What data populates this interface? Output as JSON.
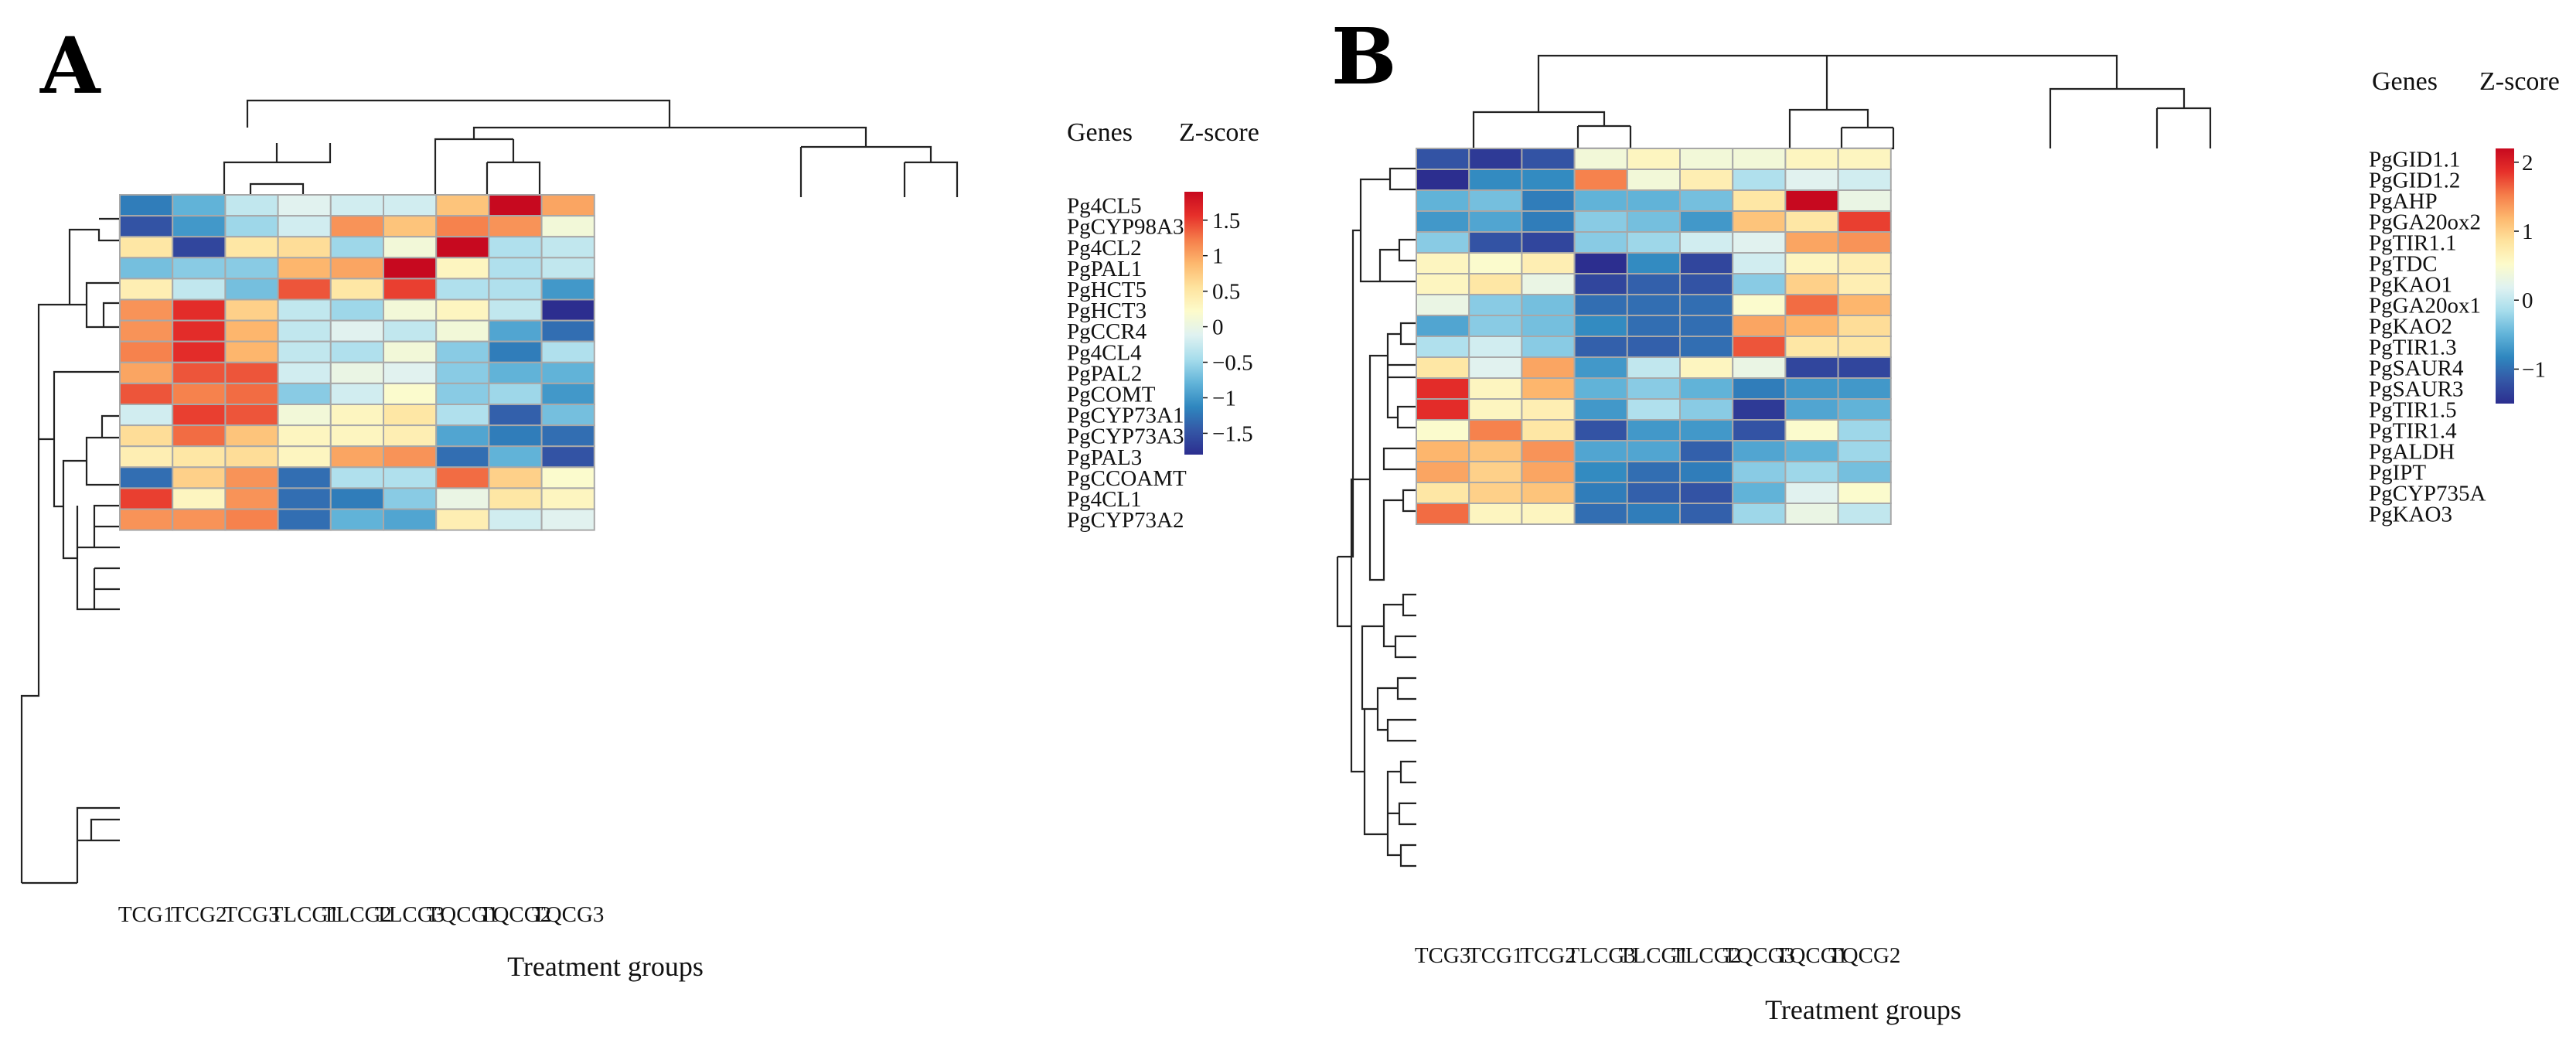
{
  "colors": {
    "scale": [
      "#2c2e8f",
      "#3457a6",
      "#2f87bf",
      "#62b4d9",
      "#a7ddec",
      "#dff2f1",
      "#fdfbcb",
      "#fee39e",
      "#fdb86e",
      "#f57d4a",
      "#e6302a",
      "#c7091f"
    ]
  },
  "chart_data": [
    {
      "type": "heatmap",
      "panel_label": "A",
      "xlabel": "Treatment groups",
      "row_header": "Genes",
      "colorbar_title": "Z-score",
      "colorbar_range": [
        -1.8,
        1.9
      ],
      "colorbar_ticks": [
        {
          "value": 1.5,
          "label": "1.5"
        },
        {
          "value": 1,
          "label": "1"
        },
        {
          "value": 0.5,
          "label": "0.5"
        },
        {
          "value": 0,
          "label": "0"
        },
        {
          "value": -0.5,
          "label": "−0.5"
        },
        {
          "value": -1,
          "label": "−1"
        },
        {
          "value": -1.5,
          "label": "−1.5"
        }
      ],
      "columns": [
        "TCG1",
        "TCG2",
        "TCG3",
        "TLCG1",
        "TLCG2",
        "TLCG3",
        "TQCG1",
        "TQCG2",
        "TQCG3"
      ],
      "rows": [
        "Pg4CL5",
        "PgCYP98A3",
        "Pg4CL2",
        "PgPAL1",
        "PgHCT5",
        "PgHCT3",
        "PgCCR4",
        "Pg4CL4",
        "PgPAL2",
        "PgCOMT",
        "PgCYP73A1",
        "PgCYP73A3",
        "PgPAL3",
        "PgCCOAMT",
        "Pg4CL1",
        "PgCYP73A2"
      ],
      "values": [
        [
          -1.2,
          -0.8,
          -0.3,
          -0.1,
          -0.2,
          -0.2,
          0.8,
          1.9,
          1.0
        ],
        [
          -1.5,
          -1.0,
          -0.5,
          -0.2,
          1.1,
          0.8,
          1.2,
          1.1,
          0.1
        ],
        [
          0.5,
          -1.6,
          0.5,
          0.6,
          -0.5,
          0.1,
          1.9,
          -0.4,
          -0.3
        ],
        [
          -0.7,
          -0.6,
          -0.6,
          0.9,
          1.0,
          1.9,
          0.3,
          -0.4,
          -0.3
        ],
        [
          0.4,
          -0.3,
          -0.7,
          1.4,
          0.5,
          1.5,
          -0.4,
          -0.4,
          -1.0
        ],
        [
          1.1,
          1.6,
          0.7,
          -0.3,
          -0.5,
          0.1,
          0.3,
          -0.3,
          -1.8
        ],
        [
          1.1,
          1.6,
          0.9,
          -0.3,
          -0.1,
          -0.3,
          0.1,
          -0.9,
          -1.3
        ],
        [
          1.2,
          1.6,
          0.9,
          -0.3,
          -0.4,
          0.1,
          -0.6,
          -1.2,
          -0.4
        ],
        [
          1.0,
          1.4,
          1.4,
          -0.2,
          0.0,
          -0.1,
          -0.6,
          -0.8,
          -0.8
        ],
        [
          1.4,
          1.2,
          1.3,
          -0.6,
          -0.2,
          0.2,
          -0.6,
          -0.5,
          -1.0
        ],
        [
          -0.2,
          1.5,
          1.4,
          0.1,
          0.3,
          0.5,
          -0.4,
          -1.4,
          -0.7
        ],
        [
          0.6,
          1.3,
          0.8,
          0.3,
          0.3,
          0.4,
          -0.9,
          -1.2,
          -1.3
        ],
        [
          0.4,
          0.5,
          0.6,
          0.3,
          1.0,
          1.1,
          -1.3,
          -0.8,
          -1.5
        ],
        [
          -1.3,
          0.7,
          1.1,
          -1.3,
          -0.4,
          -0.4,
          1.3,
          0.7,
          0.2
        ],
        [
          1.5,
          0.3,
          1.1,
          -1.3,
          -1.2,
          -0.6,
          0.0,
          0.5,
          0.3
        ],
        [
          1.1,
          1.1,
          1.2,
          -1.3,
          -0.8,
          -0.9,
          0.4,
          -0.2,
          -0.1
        ]
      ]
    },
    {
      "type": "heatmap",
      "panel_label": "B",
      "xlabel": "Treatment groups",
      "row_header": "Genes",
      "colorbar_title": "Z-score",
      "colorbar_range": [
        -1.5,
        2.2
      ],
      "colorbar_ticks": [
        {
          "value": 2,
          "label": "2"
        },
        {
          "value": 1,
          "label": "1"
        },
        {
          "value": 0,
          "label": "0"
        },
        {
          "value": -1,
          "label": "−1"
        }
      ],
      "columns": [
        "TCG3",
        "TCG1",
        "TCG2",
        "TLCG3",
        "TLCG1",
        "TLCG2",
        "TQCG3",
        "TQCG1",
        "TQCG2"
      ],
      "rows": [
        "PgGID1.1",
        "PgGID1.2",
        "PgAHP",
        "PgGA20ox2",
        "PgTIR1.1",
        "PgTDC",
        "PgKAO1",
        "PgGA20ox1",
        "PgKAO2",
        "PgTIR1.3",
        "PgSAUR4",
        "PgSAUR3",
        "PgTIR1.5",
        "PgTIR1.4",
        "PgALDH",
        "PgIPT",
        "PgCYP735A",
        "PgKAO3"
      ],
      "values": [
        [
          -1.2,
          -1.4,
          -1.2,
          0.4,
          0.6,
          0.4,
          0.4,
          0.6,
          0.6
        ],
        [
          -1.5,
          -0.8,
          -0.8,
          1.5,
          0.4,
          0.7,
          -0.1,
          0.2,
          0.1
        ],
        [
          -0.5,
          -0.4,
          -0.9,
          -0.5,
          -0.5,
          -0.4,
          0.8,
          2.2,
          0.3
        ],
        [
          -0.7,
          -0.6,
          -0.9,
          -0.3,
          -0.4,
          -0.7,
          1.1,
          0.8,
          1.8
        ],
        [
          -0.3,
          -1.2,
          -1.3,
          -0.3,
          -0.2,
          0.1,
          0.2,
          1.3,
          1.4
        ],
        [
          0.6,
          0.5,
          0.7,
          -1.6,
          -0.8,
          -1.3,
          0.1,
          0.6,
          0.7
        ],
        [
          0.6,
          0.8,
          0.3,
          -1.3,
          -1.1,
          -1.2,
          -0.3,
          1.0,
          0.7
        ],
        [
          0.3,
          -0.3,
          -0.4,
          -1.0,
          -1.0,
          -1.0,
          0.5,
          1.6,
          1.2
        ],
        [
          -0.6,
          -0.3,
          -0.4,
          -0.8,
          -1.0,
          -1.0,
          1.3,
          1.2,
          0.9
        ],
        [
          -0.1,
          0.1,
          -0.3,
          -1.1,
          -1.1,
          -1.0,
          1.7,
          0.8,
          0.8
        ],
        [
          0.8,
          0.2,
          1.3,
          -0.7,
          0.0,
          0.6,
          0.3,
          -1.3,
          -1.3
        ],
        [
          1.9,
          0.6,
          1.2,
          -0.5,
          -0.3,
          -0.5,
          -0.9,
          -0.7,
          -0.7
        ],
        [
          1.9,
          0.6,
          0.7,
          -0.7,
          -0.1,
          -0.3,
          -1.4,
          -0.6,
          -0.5
        ],
        [
          0.5,
          1.5,
          0.8,
          -1.2,
          -0.7,
          -0.7,
          -1.2,
          0.5,
          -0.2
        ],
        [
          1.2,
          1.1,
          1.4,
          -0.6,
          -0.6,
          -1.1,
          -0.6,
          -0.5,
          -0.2
        ],
        [
          1.3,
          1.0,
          1.3,
          -0.8,
          -1.0,
          -0.9,
          -0.3,
          -0.2,
          -0.4
        ],
        [
          0.8,
          1.0,
          1.1,
          -0.9,
          -1.1,
          -1.2,
          -0.5,
          0.2,
          0.5
        ],
        [
          1.6,
          0.6,
          0.6,
          -1.0,
          -0.9,
          -1.1,
          -0.2,
          0.3,
          0.0
        ]
      ]
    }
  ]
}
